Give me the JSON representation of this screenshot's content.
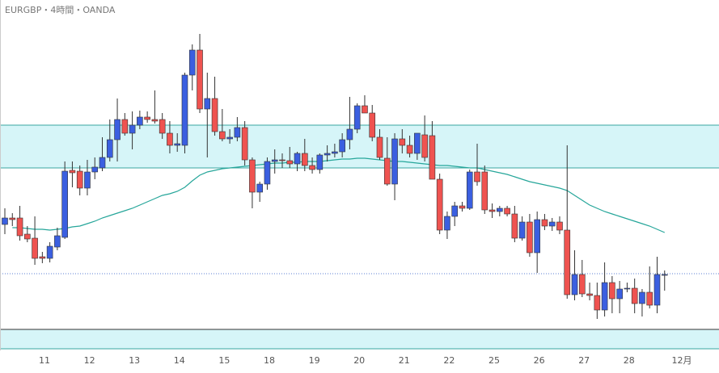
{
  "chart_data": {
    "type": "candlestick",
    "title": "EURGBP・4時間・OANDA",
    "x_labels": [
      "11",
      "12",
      "13",
      "14",
      "15",
      "18",
      "19",
      "20",
      "21",
      "22",
      "25",
      "26",
      "27",
      "28",
      "12月"
    ],
    "up_color": "#3b5fe0",
    "down_color": "#ef5350",
    "open": [
      184,
      192,
      192,
      172,
      167,
      144,
      142,
      156,
      168,
      251,
      250,
      229,
      249,
      254,
      267,
      289,
      314,
      297,
      307,
      317,
      314,
      314,
      297,
      282,
      282,
      369,
      400,
      327,
      340,
      299,
      290,
      292,
      304,
      264,
      224,
      234,
      262,
      264,
      263,
      259,
      272,
      257,
      252,
      270,
      272,
      274,
      289,
      302,
      331,
      322,
      292,
      266,
      234,
      290,
      282,
      272,
      295,
      294,
      240,
      177,
      194,
      207,
      204,
      249,
      249,
      202,
      200,
      204,
      197,
      167,
      187,
      149,
      190,
      182,
      187,
      177,
      97,
      122,
      98,
      96,
      78,
      112,
      92,
      104,
      105,
      86,
      100,
      84,
      122
    ],
    "high": [
      204,
      198,
      207,
      182,
      194,
      150,
      162,
      180,
      262,
      262,
      257,
      264,
      267,
      292,
      314,
      340,
      322,
      324,
      325,
      324,
      350,
      322,
      312,
      297,
      372,
      407,
      420,
      372,
      367,
      327,
      302,
      317,
      312,
      267,
      237,
      267,
      277,
      272,
      280,
      274,
      290,
      267,
      272,
      282,
      284,
      297,
      342,
      334,
      344,
      332,
      302,
      292,
      297,
      302,
      294,
      297,
      319,
      312,
      247,
      200,
      212,
      212,
      252,
      284,
      257,
      210,
      207,
      207,
      207,
      194,
      197,
      200,
      197,
      192,
      194,
      282,
      152,
      140,
      112,
      112,
      137,
      120,
      114,
      112,
      117,
      104,
      132,
      144,
      127
    ],
    "low": [
      172,
      182,
      164,
      162,
      134,
      136,
      137,
      152,
      166,
      230,
      220,
      220,
      240,
      250,
      262,
      262,
      294,
      277,
      302,
      310,
      309,
      290,
      272,
      274,
      272,
      350,
      322,
      267,
      294,
      287,
      284,
      287,
      257,
      204,
      212,
      227,
      247,
      254,
      254,
      250,
      250,
      247,
      247,
      262,
      267,
      267,
      277,
      297,
      322,
      287,
      264,
      232,
      214,
      272,
      267,
      264,
      262,
      240,
      172,
      166,
      182,
      200,
      202,
      232,
      197,
      192,
      194,
      194,
      162,
      164,
      144,
      124,
      177,
      176,
      172,
      92,
      90,
      94,
      90,
      67,
      70,
      74,
      74,
      100,
      74,
      70,
      80,
      74,
      102
    ],
    "close": [
      192,
      190,
      170,
      166,
      142,
      142,
      157,
      170,
      250,
      248,
      229,
      249,
      255,
      267,
      289,
      314,
      297,
      307,
      317,
      314,
      312,
      297,
      282,
      284,
      369,
      400,
      327,
      340,
      299,
      290,
      292,
      304,
      264,
      224,
      234,
      262,
      264,
      263,
      259,
      272,
      257,
      252,
      270,
      272,
      274,
      289,
      302,
      331,
      322,
      292,
      267,
      234,
      290,
      282,
      272,
      297,
      267,
      240,
      177,
      194,
      207,
      204,
      249,
      237,
      202,
      200,
      204,
      197,
      167,
      187,
      149,
      190,
      182,
      187,
      177,
      97,
      122,
      98,
      96,
      78,
      112,
      92,
      104,
      105,
      86,
      100,
      84,
      122,
      122
    ],
    "ma": {
      "color": "#26a69a",
      "values": [
        null,
        180,
        180,
        179,
        178,
        178,
        177,
        178,
        179,
        181,
        182,
        185,
        188,
        192,
        195,
        198,
        201,
        204,
        208,
        212,
        216,
        220,
        222,
        225,
        230,
        238,
        245,
        249,
        251,
        253,
        254,
        255,
        256,
        257,
        258,
        259,
        260,
        260,
        261,
        261,
        262,
        262,
        262,
        263,
        264,
        265,
        265,
        266,
        266,
        265,
        264,
        263,
        262,
        262,
        261,
        260,
        259,
        258,
        257,
        257,
        256,
        255,
        254,
        254,
        252,
        250,
        248,
        246,
        243,
        240,
        237,
        235,
        233,
        231,
        229,
        226,
        220,
        214,
        208,
        204,
        200,
        197,
        194,
        191,
        188,
        185,
        182,
        178,
        174
      ]
    },
    "zones": [
      {
        "from": 254,
        "to": 307
      },
      {
        "from": 30,
        "to": 54
      }
    ],
    "zone_color": "#d6f5f8",
    "hline": 123
  }
}
